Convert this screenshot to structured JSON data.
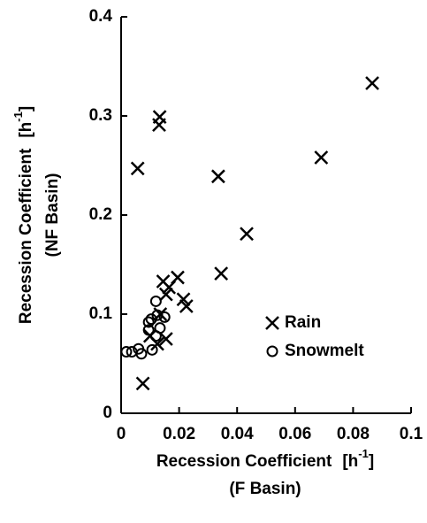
{
  "chart_data": {
    "type": "scatter",
    "x_label": {
      "text": "Recession Coefficient",
      "unit_open": "[h",
      "exponent": "-1",
      "unit_close": "]",
      "sub": "(F Basin)"
    },
    "y_label": {
      "text": "Recession Coefficient",
      "unit_open": "[h",
      "exponent": "-1",
      "unit_close": "]",
      "sub": "(NF Basin)"
    },
    "xlim": [
      0,
      0.1
    ],
    "xticks": [
      0,
      0.02,
      0.04,
      0.06,
      0.08,
      0.1
    ],
    "ylim": [
      0,
      0.4
    ],
    "yticks": [
      0,
      0.1,
      0.2,
      0.3,
      0.4
    ],
    "legend": "lower right",
    "series": [
      {
        "name": "Rain",
        "marker": "x",
        "color": "#000000",
        "x": [
          0.0866,
          0.069,
          0.0133,
          0.0131,
          0.0057,
          0.0335,
          0.0433,
          0.0345,
          0.0195,
          0.0145,
          0.0165,
          0.0155,
          0.0215,
          0.0225,
          0.0135,
          0.0155,
          0.0125,
          0.01,
          0.0075
        ],
        "values": [
          0.333,
          0.258,
          0.299,
          0.291,
          0.247,
          0.239,
          0.181,
          0.141,
          0.137,
          0.133,
          0.127,
          0.12,
          0.115,
          0.108,
          0.1,
          0.075,
          0.07,
          0.078,
          0.03
        ]
      },
      {
        "name": "Snowmelt",
        "marker": "o",
        "color": "#000000",
        "x": [
          0.0018,
          0.0037,
          0.006,
          0.007,
          0.0095,
          0.0095,
          0.0107,
          0.012,
          0.012,
          0.0125,
          0.0134,
          0.015,
          0.0104
        ],
        "values": [
          0.062,
          0.062,
          0.065,
          0.06,
          0.092,
          0.084,
          0.064,
          0.078,
          0.113,
          0.099,
          0.086,
          0.097,
          0.095
        ]
      }
    ]
  }
}
